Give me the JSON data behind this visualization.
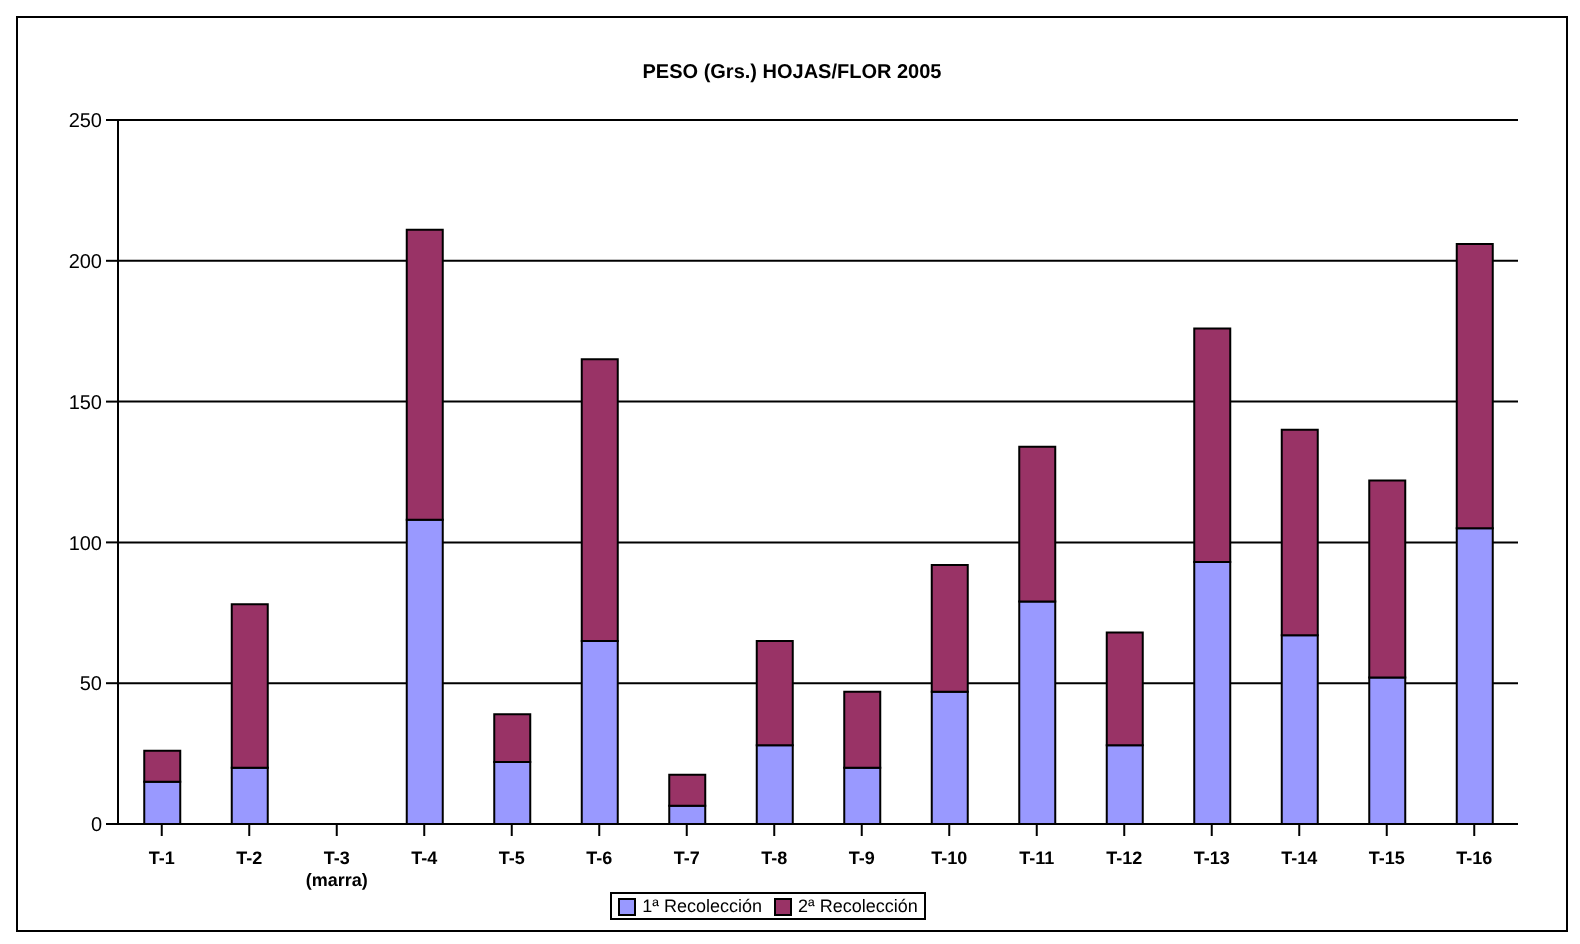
{
  "chart_data": {
    "type": "bar",
    "title": "PESO (Grs.) HOJAS/FLOR 2005",
    "stacked": true,
    "categories": [
      "T-1",
      "T-2",
      "T-3 (marra)",
      "T-4",
      "T-5",
      "T-6",
      "T-7",
      "T-8",
      "T-9",
      "T-10",
      "T-11",
      "T-12",
      "T-13",
      "T-14",
      "T-15",
      "T-16"
    ],
    "series": [
      {
        "name": "1ª Recolección",
        "color": "#9999ff",
        "values": [
          15,
          20,
          0,
          108,
          22,
          65,
          6.5,
          28,
          20,
          47,
          79,
          28,
          93,
          67,
          52,
          105
        ]
      },
      {
        "name": "2ª Recolección",
        "color": "#993366",
        "values": [
          11,
          58,
          0,
          103,
          17,
          100,
          11,
          37,
          27,
          45,
          55,
          40,
          83,
          73,
          70,
          101
        ]
      }
    ],
    "ylim": [
      0,
      250
    ],
    "yticks": [
      0,
      50,
      100,
      150,
      200,
      250
    ],
    "grid": "y",
    "legend": "bottom"
  }
}
